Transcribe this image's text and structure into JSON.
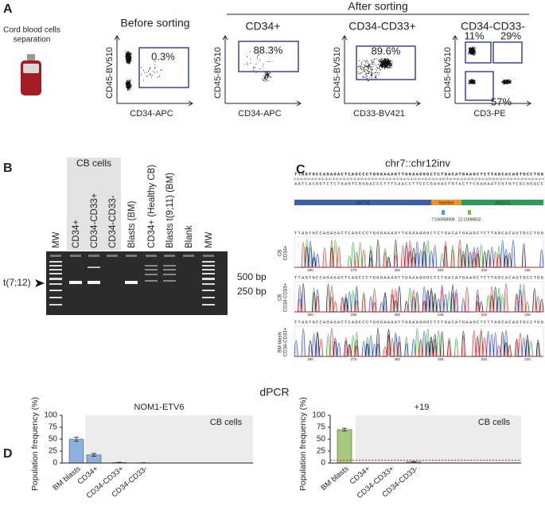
{
  "panel_a": {
    "label": "A",
    "source": [
      "Cord blood cells",
      "separation"
    ],
    "before": "Before sorting",
    "after": "After sorting",
    "plots": [
      {
        "ylabel": "CD45-BV510",
        "xlabel": "CD34-APC",
        "gates": [
          0.3
        ],
        "gate_labels": [
          "0.3%"
        ]
      },
      {
        "title": "CD34+",
        "ylabel": "CD45-BV510",
        "xlabel": "CD34-APC",
        "gates": [
          88.3
        ],
        "gate_labels": [
          "88.3%"
        ]
      },
      {
        "title": "CD34-CD33+",
        "ylabel": "CD45-BV510",
        "xlabel": "CD33-BV421",
        "gates": [
          89.6
        ],
        "gate_labels": [
          "89.6%"
        ]
      },
      {
        "title": "CD34-CD33-",
        "ylabel": "CD45-BV510",
        "xlabel": "CD3-PE",
        "gates": [
          11,
          29,
          57
        ],
        "gate_labels": [
          "11%",
          "29%",
          "57%"
        ]
      }
    ]
  },
  "panel_b": {
    "label": "B",
    "group": "CB cells",
    "lanes": [
      "MW",
      "CD34+",
      "CD34-CD33+",
      "CD34-CD33-",
      "Blasts (BM)",
      "CD34+ (Healthy CB)",
      "Blasts t(9;11) (BM)",
      "Blank",
      "MW"
    ],
    "sizes": [
      "500 bp",
      "250 bp"
    ],
    "band": "t(7;12)"
  },
  "panel_c": {
    "label": "C",
    "title": "chr7::chr12inv",
    "sequence": "TTAGTGCCAGAGACTCAGCCCTGGGAAAGTTGGAAGGGCTCTGACATGAAGCTCTTAGCACAGTGCCTGG",
    "complement": "AATCACGGTCTCTGAGTCGGGACCCTTTCAACCTTCCCGAGACTGTACTTCGAGAATCGTGTCACGGACC",
    "segments": [
      "chr7 (+)",
      "Insertion",
      "chr12 (-)"
    ],
    "breakpoints": [
      "7:156958908",
      "12:11698832"
    ],
    "traces": [
      {
        "name": [
          "CB",
          "CD34+"
        ],
        "ticks": [
          "280",
          "270",
          "260",
          "250",
          "240",
          "235"
        ]
      },
      {
        "name": [
          "CB",
          "CD34-CD33+"
        ],
        "ticks": [
          "260",
          "255",
          "250",
          "245",
          "240",
          "235"
        ]
      },
      {
        "name": [
          "BM blasts",
          "CD34-CD33+"
        ],
        "ticks": [
          "280",
          "270",
          "260",
          "250",
          "240",
          "230"
        ]
      }
    ]
  },
  "panel_d": {
    "label": "D",
    "title": "dPCR"
  },
  "chart_data": [
    {
      "type": "bar",
      "title": "NOM1-ETV6",
      "group": "CB cells",
      "ylabel": "Population frequency (%)",
      "categories": [
        "BM blasts",
        "CD34+",
        "CD34-CD33+",
        "CD34-CD33-"
      ],
      "values": [
        50,
        17,
        1,
        0.5
      ],
      "errors": [
        4,
        3,
        0.5,
        0.3
      ],
      "color": "#8db0dc",
      "ylim": [
        0,
        100
      ],
      "yticks": [
        0,
        25,
        50,
        75,
        100
      ]
    },
    {
      "type": "bar",
      "title": "+19",
      "group": "CB cells",
      "ylabel": "Population frequency (%)",
      "categories": [
        "BM blasts",
        "CD34+",
        "CD34-CD33+",
        "CD34-CD33-"
      ],
      "values": [
        70,
        0,
        0,
        2.5
      ],
      "errors": [
        3,
        0,
        0,
        0.5
      ],
      "color": "#a6c97c",
      "ylim": [
        0,
        100
      ],
      "yticks": [
        0,
        25,
        50,
        75,
        100
      ],
      "threshold": 6
    }
  ]
}
